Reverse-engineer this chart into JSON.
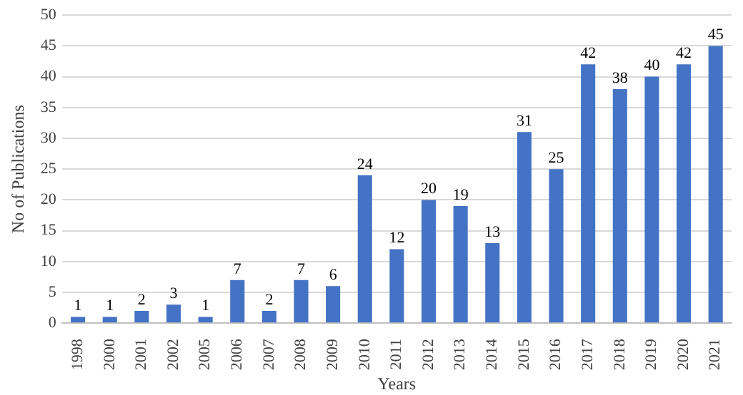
{
  "chart_data": {
    "type": "bar",
    "xlabel": "Years",
    "ylabel": "No of Publications",
    "categories": [
      "1998",
      "2000",
      "2001",
      "2002",
      "2005",
      "2006",
      "2007",
      "2008",
      "2009",
      "2010",
      "2011",
      "2012",
      "2013",
      "2014",
      "2015",
      "2016",
      "2017",
      "2018",
      "2019",
      "2020",
      "2021"
    ],
    "values": [
      1,
      1,
      2,
      3,
      1,
      7,
      2,
      7,
      6,
      24,
      12,
      20,
      19,
      13,
      31,
      25,
      42,
      38,
      40,
      42,
      45
    ],
    "color": "#4472c4",
    "ylim": [
      0,
      50
    ],
    "yticks": [
      0,
      5,
      10,
      15,
      20,
      25,
      30,
      35,
      40,
      45,
      50
    ],
    "grid": "y",
    "data_labels": true
  }
}
